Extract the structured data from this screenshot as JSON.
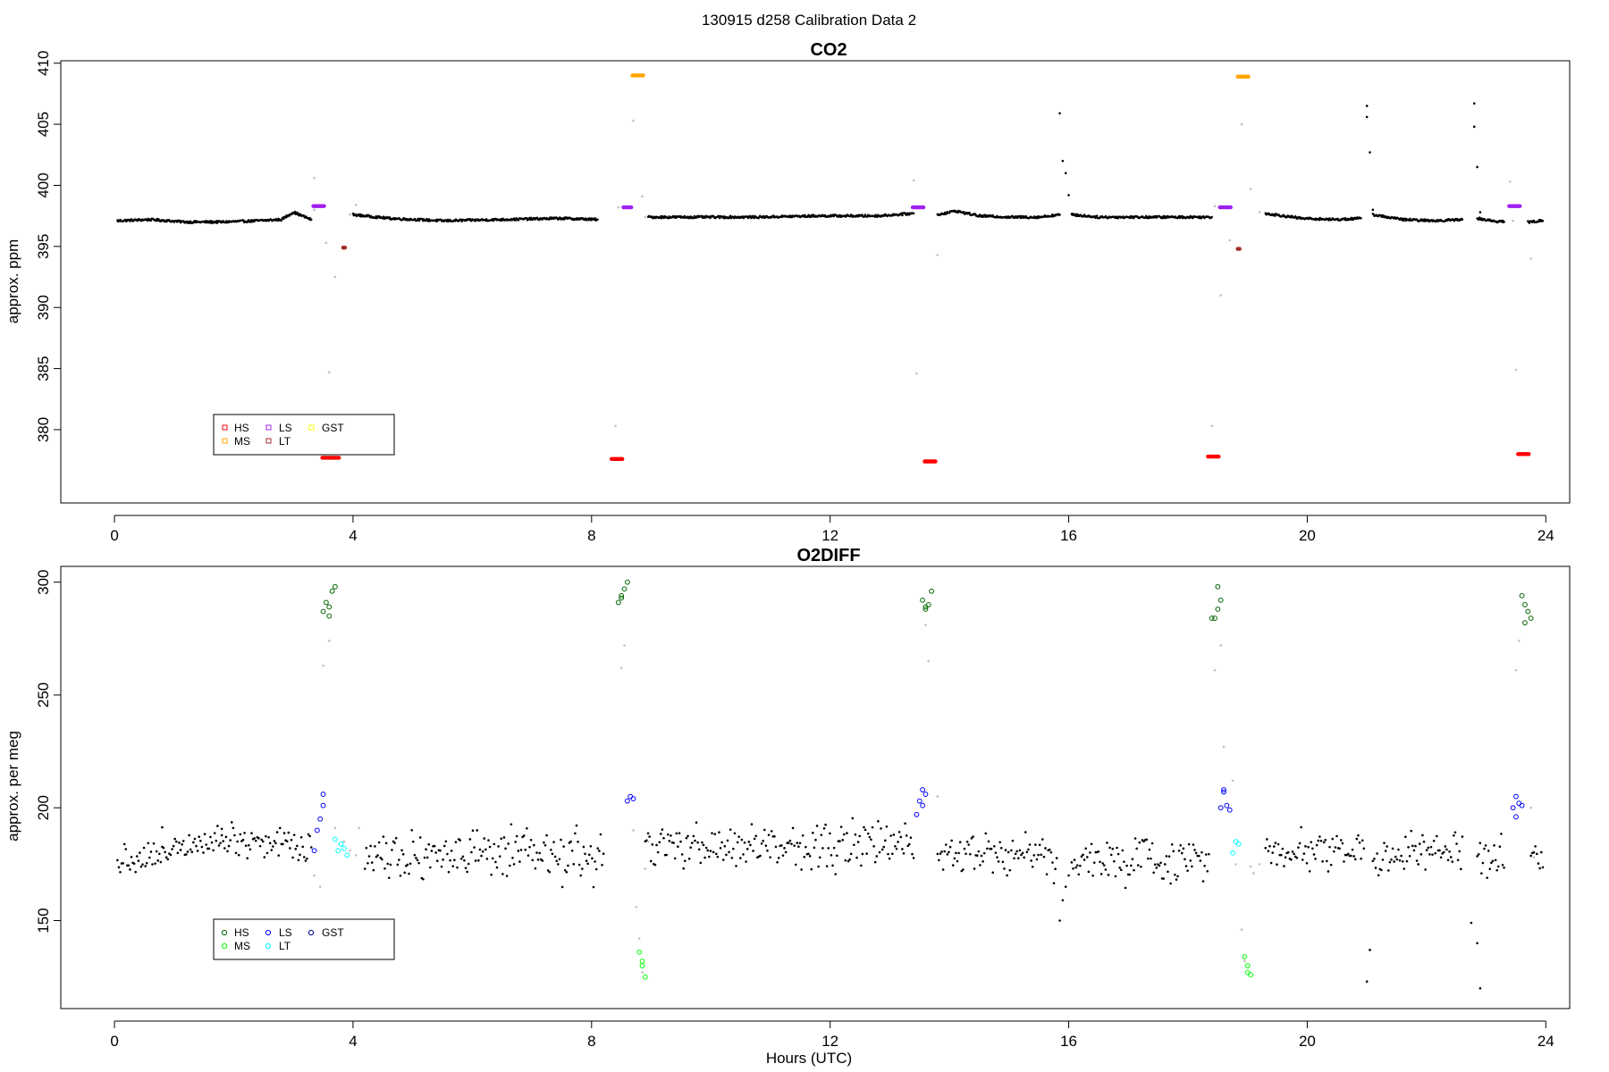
{
  "figure": {
    "title": "130915   d258   Calibration Data 2",
    "xlabel": "Hours (UTC)"
  },
  "chart_data": [
    {
      "type": "scatter",
      "title": "CO2",
      "xlabel": "",
      "ylabel": "approx. ppm",
      "xlim": [
        -0.9,
        24.4
      ],
      "ylim": [
        374,
        410.2
      ],
      "xticks": [
        0,
        4,
        8,
        12,
        16,
        20,
        24
      ],
      "yticks": [
        380,
        385,
        390,
        395,
        400,
        405,
        410
      ],
      "grid": false,
      "legend_position": "bottom-left",
      "legend": [
        {
          "label": "HS",
          "color": "#ff0000"
        },
        {
          "label": "MS",
          "color": "#ffa500"
        },
        {
          "label": "LS",
          "color": "#a020f0"
        },
        {
          "label": "LT",
          "color": "#a52a2a"
        },
        {
          "label": "GST",
          "color": "#ffff00"
        }
      ],
      "series": [
        {
          "color": "#000000",
          "style": "dots",
          "segments": [
            {
              "x": [
                0.05,
                0.6,
                1.2,
                1.8,
                2.4,
                2.8,
                3.0,
                3.3
              ],
              "y": [
                397.1,
                397.2,
                397.0,
                397.0,
                397.1,
                397.2,
                397.8,
                397.2
              ]
            },
            {
              "x": [
                4.0,
                4.6,
                5.5,
                6.5,
                7.5,
                8.1
              ],
              "y": [
                397.6,
                397.3,
                397.1,
                397.2,
                397.3,
                397.2
              ]
            },
            {
              "x": [
                8.95,
                9.8,
                10.8,
                11.8,
                12.8,
                13.4
              ],
              "y": [
                397.4,
                397.4,
                397.4,
                397.5,
                397.5,
                397.7
              ]
            },
            {
              "x": [
                13.8,
                14.1,
                14.5,
                15.0,
                15.5,
                15.85
              ],
              "y": [
                397.6,
                397.9,
                397.5,
                397.4,
                397.4,
                397.6
              ]
            },
            {
              "x": [
                16.05,
                16.5,
                17.0,
                17.6,
                18.2,
                18.4
              ],
              "y": [
                397.6,
                397.4,
                397.4,
                397.4,
                397.4,
                397.4
              ]
            },
            {
              "x": [
                19.3,
                19.9,
                20.5,
                20.9
              ],
              "y": [
                397.7,
                397.3,
                397.2,
                397.3
              ]
            },
            {
              "x": [
                21.1,
                21.6,
                22.1,
                22.6
              ],
              "y": [
                397.6,
                397.2,
                397.1,
                397.2
              ]
            },
            {
              "x": [
                22.85,
                23.1,
                23.3
              ],
              "y": [
                397.3,
                397.1,
                397.0
              ]
            },
            {
              "x": [
                23.7,
                23.95
              ],
              "y": [
                397.0,
                397.1
              ]
            }
          ],
          "points": {
            "x": [
              15.85,
              15.9,
              15.95,
              16.0,
              21.0,
              21.0,
              21.05,
              21.1,
              22.8,
              22.8,
              22.85,
              22.9
            ],
            "y": [
              405.9,
              402.0,
              401.0,
              399.2,
              406.5,
              405.6,
              402.7,
              398.0,
              406.7,
              404.8,
              401.5,
              397.8
            ]
          }
        },
        {
          "color": "#c0c0c0",
          "style": "dots",
          "points": {
            "x": [
              3.35,
              3.6,
              3.7,
              3.95,
              4.05,
              8.4,
              8.7,
              8.85,
              8.9,
              13.4,
              13.8,
              18.4,
              18.55,
              18.7,
              18.9,
              19.05,
              19.2,
              23.4,
              23.5,
              23.75,
              3.35,
              3.55,
              8.45,
              13.45,
              18.45,
              23.45
            ],
            "y": [
              400.6,
              384.7,
              392.5,
              397.6,
              398.4,
              380.3,
              405.3,
              399.1,
              397.4,
              400.4,
              394.3,
              380.3,
              391.0,
              395.5,
              405.0,
              399.7,
              397.8,
              400.3,
              384.9,
              394.0,
              398.0,
              395.3,
              398.2,
              384.6,
              398.3,
              397.1
            ]
          }
        },
        {
          "name": "HS",
          "color": "#ff0000",
          "style": "points",
          "x": [
            3.5,
            3.55,
            3.6,
            3.65,
            3.7,
            3.75,
            8.35,
            8.4,
            8.45,
            8.5,
            13.6,
            13.65,
            13.7,
            13.75,
            18.35,
            18.4,
            18.45,
            18.5,
            23.55,
            23.6,
            23.65,
            23.7
          ],
          "y": [
            377.7,
            377.7,
            377.7,
            377.7,
            377.7,
            377.7,
            377.6,
            377.6,
            377.6,
            377.6,
            377.4,
            377.4,
            377.4,
            377.4,
            377.8,
            377.8,
            377.8,
            377.8,
            378.0,
            378.0,
            378.0,
            378.0
          ]
        },
        {
          "name": "MS",
          "color": "#ffa500",
          "style": "points",
          "x": [
            8.7,
            8.75,
            8.8,
            8.85,
            18.85,
            18.9,
            18.95,
            19.0
          ],
          "y": [
            409.0,
            409.0,
            409.0,
            409.0,
            408.9,
            408.9,
            408.9,
            408.9
          ]
        },
        {
          "name": "LS",
          "color": "#a020f0",
          "style": "points",
          "x": [
            3.35,
            3.4,
            3.45,
            3.5,
            8.55,
            8.6,
            8.65,
            13.4,
            13.45,
            13.5,
            13.55,
            18.55,
            18.6,
            18.65,
            18.7,
            23.4,
            23.45,
            23.5,
            23.55
          ],
          "y": [
            398.3,
            398.3,
            398.3,
            398.3,
            398.2,
            398.2,
            398.2,
            398.2,
            398.2,
            398.2,
            398.2,
            398.2,
            398.2,
            398.2,
            398.2,
            398.3,
            398.3,
            398.3,
            398.3
          ]
        },
        {
          "name": "LT",
          "color": "#a52a2a",
          "style": "points",
          "x": [
            3.85,
            18.85
          ],
          "y": [
            394.9,
            394.8
          ]
        }
      ]
    },
    {
      "type": "scatter",
      "title": "O2DIFF",
      "xlabel": "Hours (UTC)",
      "ylabel": "approx. per meg",
      "xlim": [
        -0.9,
        24.4
      ],
      "ylim": [
        111,
        307
      ],
      "xticks": [
        0,
        4,
        8,
        12,
        16,
        20,
        24
      ],
      "yticks": [
        150,
        200,
        250,
        300
      ],
      "grid": false,
      "legend_position": "bottom-left",
      "legend": [
        {
          "label": "HS",
          "color": "#006400"
        },
        {
          "label": "MS",
          "color": "#00ff00"
        },
        {
          "label": "LS",
          "color": "#0000ff"
        },
        {
          "label": "LT",
          "color": "#00ffff"
        },
        {
          "label": "GST",
          "color": "#00008b"
        }
      ],
      "series": [
        {
          "color": "#000000",
          "style": "noise",
          "segments": [
            {
              "x0": 0.05,
              "x1": 0.8,
              "base0": 177,
              "base1": 179,
              "spread": 8
            },
            {
              "x0": 0.8,
              "x1": 1.8,
              "base0": 182,
              "base1": 188,
              "spread": 8
            },
            {
              "x0": 1.8,
              "x1": 3.3,
              "base0": 187,
              "base1": 183,
              "spread": 9
            },
            {
              "x0": 4.2,
              "x1": 8.2,
              "base0": 180,
              "base1": 178,
              "spread": 12
            },
            {
              "x0": 8.9,
              "x1": 13.4,
              "base0": 182,
              "base1": 184,
              "spread": 11
            },
            {
              "x0": 13.8,
              "x1": 15.8,
              "base0": 182,
              "base1": 179,
              "spread": 11
            },
            {
              "x0": 16.05,
              "x1": 18.35,
              "base0": 176,
              "base1": 177,
              "spread": 11
            },
            {
              "x0": 19.3,
              "x1": 20.95,
              "base0": 182,
              "base1": 181,
              "spread": 9
            },
            {
              "x0": 21.1,
              "x1": 22.6,
              "base0": 178,
              "base1": 181,
              "spread": 9
            },
            {
              "x0": 22.85,
              "x1": 23.3,
              "base0": 178,
              "base1": 177,
              "spread": 10
            },
            {
              "x0": 23.75,
              "x1": 23.95,
              "base0": 178,
              "base1": 177,
              "spread": 6
            }
          ],
          "points": {
            "x": [
              15.85,
              15.9,
              15.95,
              16.0,
              21.0,
              21.05,
              22.75,
              22.85,
              22.9
            ],
            "y": [
              150,
              159,
              165,
              170,
              123,
              137,
              149,
              140,
              120
            ]
          }
        },
        {
          "color": "#c0c0c0",
          "style": "dots",
          "points": {
            "x": [
              3.35,
              3.45,
              3.5,
              3.6,
              3.7,
              3.85,
              3.95,
              4.05,
              4.1,
              8.5,
              8.55,
              8.7,
              8.75,
              8.8,
              8.85,
              8.9,
              8.95,
              13.6,
              13.65,
              13.8,
              18.45,
              18.55,
              18.6,
              18.75,
              18.8,
              18.9,
              18.95,
              19.05,
              19.1,
              19.2,
              23.5,
              23.55,
              23.75,
              23.8
            ],
            "y": [
              170,
              165,
              263,
              274,
              191,
              185,
              181,
              179,
              191,
              262,
              272,
              190,
              156,
              142,
              127,
              173,
              185,
              281,
              265,
              205,
              261,
              272,
              227,
              212,
              175,
              146,
              132,
              174,
              171,
              175,
              261,
              274,
              200,
              178
            ]
          }
        },
        {
          "name": "HS",
          "color": "#006400",
          "style": "circles",
          "x": [
            3.5,
            3.55,
            3.6,
            3.65,
            3.7,
            3.6,
            8.45,
            8.5,
            8.55,
            8.6,
            8.5,
            13.55,
            13.6,
            13.65,
            13.7,
            13.6,
            18.4,
            18.45,
            18.5,
            18.55,
            18.5,
            23.6,
            23.65,
            23.7,
            23.75,
            23.65
          ],
          "y": [
            287,
            291,
            289,
            296,
            298,
            285,
            291,
            294,
            297,
            300,
            293,
            292,
            288,
            290,
            296,
            289,
            284,
            284,
            288,
            292,
            298,
            294,
            290,
            287,
            284,
            282
          ]
        },
        {
          "name": "MS",
          "color": "#00ff00",
          "style": "circles",
          "x": [
            8.8,
            8.85,
            8.9,
            8.85,
            18.95,
            19.0,
            19.05,
            19.0
          ],
          "y": [
            136,
            130,
            125,
            132,
            134,
            130,
            126,
            127
          ]
        },
        {
          "name": "LS",
          "color": "#0000ff",
          "style": "circles",
          "x": [
            3.35,
            3.4,
            3.45,
            3.5,
            3.5,
            8.6,
            8.65,
            8.7,
            13.45,
            13.5,
            13.55,
            13.6,
            13.55,
            18.55,
            18.6,
            18.65,
            18.7,
            18.6,
            23.45,
            23.5,
            23.55,
            23.6,
            23.5
          ],
          "y": [
            181,
            190,
            195,
            201,
            206,
            203,
            205,
            204,
            197,
            203,
            208,
            206,
            201,
            200,
            208,
            201,
            199,
            207,
            200,
            205,
            202,
            201,
            196
          ]
        },
        {
          "name": "LT",
          "color": "#00ffff",
          "style": "circles",
          "x": [
            3.7,
            3.75,
            3.8,
            3.85,
            3.9,
            18.75,
            18.8,
            18.85
          ],
          "y": [
            186,
            181,
            184,
            182,
            179,
            180,
            185,
            184
          ]
        }
      ]
    }
  ]
}
